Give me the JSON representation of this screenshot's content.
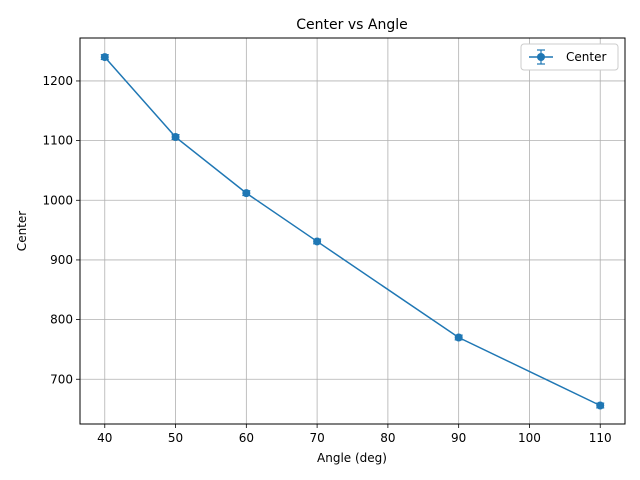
{
  "chart_data": {
    "type": "line",
    "title": "Center vs Angle",
    "xlabel": "Angle (deg)",
    "ylabel": "Center",
    "xlim": [
      36.5,
      113.5
    ],
    "ylim": [
      625,
      1272
    ],
    "xticks": [
      40,
      50,
      60,
      70,
      80,
      90,
      100,
      110
    ],
    "yticks": [
      700,
      800,
      900,
      1000,
      1100,
      1200
    ],
    "grid": true,
    "legend": "top-right",
    "series": [
      {
        "name": "Center",
        "color": "#1f77b4",
        "marker": "circle",
        "error_bars": true,
        "x": [
          40,
          50,
          60,
          70,
          90,
          110
        ],
        "y": [
          1240,
          1106,
          1012,
          931,
          770,
          656
        ],
        "yerr": [
          4,
          4,
          4,
          4,
          4,
          4
        ]
      }
    ]
  }
}
